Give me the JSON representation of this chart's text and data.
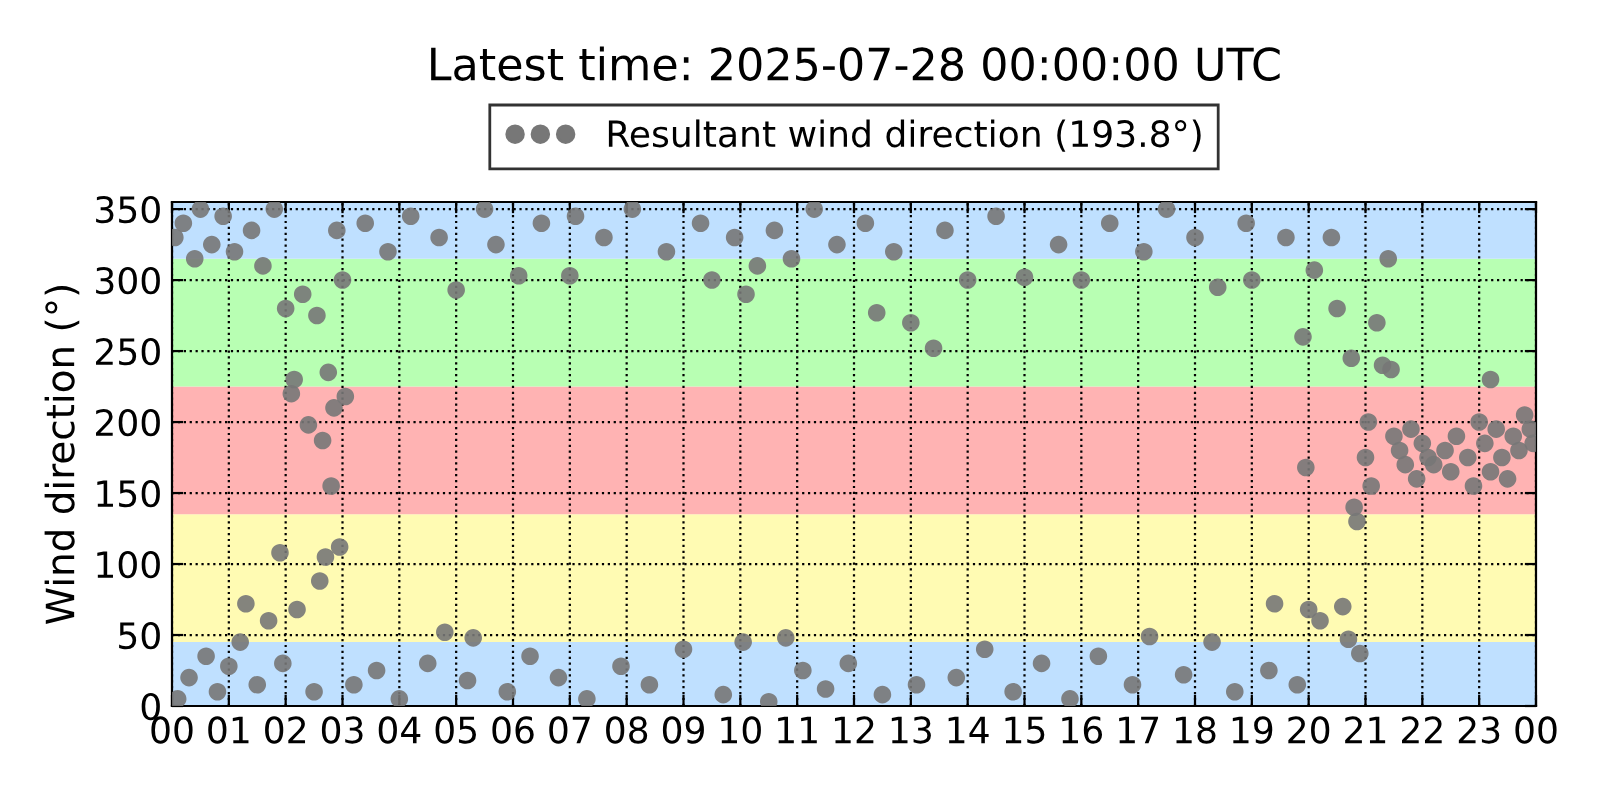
{
  "chart_data": {
    "type": "scatter",
    "title": "Latest time: 2025-07-28 00:00:00 UTC",
    "ylabel": "Wind direction (°)",
    "series": [
      {
        "name": "Resultant wind direction (193.8°)",
        "color": "#777777",
        "x": [
          0.05,
          0.1,
          0.2,
          0.3,
          0.4,
          0.5,
          0.6,
          0.7,
          0.8,
          0.9,
          1.0,
          1.1,
          1.2,
          1.3,
          1.4,
          1.5,
          1.6,
          1.7,
          1.8,
          1.9,
          1.95,
          2.0,
          2.1,
          2.15,
          2.2,
          2.3,
          2.4,
          2.5,
          2.55,
          2.6,
          2.65,
          2.7,
          2.75,
          2.8,
          2.85,
          2.9,
          2.95,
          3.05,
          3.0,
          3.2,
          3.4,
          3.6,
          3.8,
          4.0,
          4.2,
          4.5,
          4.7,
          4.8,
          5.0,
          5.2,
          5.3,
          5.5,
          5.7,
          5.9,
          6.1,
          6.3,
          6.5,
          6.8,
          7.0,
          7.1,
          7.3,
          7.6,
          7.9,
          8.1,
          8.4,
          8.7,
          9.0,
          9.3,
          9.5,
          9.7,
          9.9,
          10.05,
          10.1,
          10.3,
          10.5,
          10.6,
          10.8,
          10.9,
          11.1,
          11.3,
          11.5,
          11.7,
          11.9,
          12.2,
          12.4,
          12.5,
          12.7,
          13.0,
          13.1,
          13.4,
          13.6,
          13.8,
          14.0,
          14.3,
          14.5,
          14.8,
          15.0,
          15.3,
          15.6,
          15.8,
          16.0,
          16.3,
          16.5,
          16.9,
          17.1,
          17.2,
          17.5,
          17.8,
          18.0,
          18.3,
          18.4,
          18.7,
          18.9,
          19.0,
          19.3,
          19.4,
          19.6,
          19.8,
          19.9,
          19.95,
          20.0,
          20.1,
          20.2,
          20.4,
          20.5,
          20.6,
          20.7,
          20.75,
          20.8,
          20.85,
          20.9,
          21.0,
          21.05,
          21.1,
          21.2,
          21.3,
          21.4,
          21.45,
          21.5,
          21.6,
          21.7,
          21.8,
          21.9,
          22.0,
          22.1,
          22.2,
          22.4,
          22.5,
          22.6,
          22.8,
          22.9,
          23.0,
          23.1,
          23.2,
          23.3,
          23.4,
          23.5,
          23.6,
          23.7,
          23.8,
          23.9,
          23.95,
          23.2
        ],
        "values": [
          330,
          5,
          340,
          20,
          315,
          350,
          35,
          325,
          10,
          345,
          28,
          320,
          45,
          72,
          335,
          15,
          310,
          60,
          350,
          108,
          30,
          280,
          220,
          230,
          68,
          290,
          198,
          10,
          275,
          88,
          187,
          105,
          235,
          155,
          210,
          335,
          112,
          218,
          300,
          15,
          340,
          25,
          320,
          5,
          345,
          30,
          330,
          52,
          293,
          18,
          48,
          350,
          325,
          10,
          303,
          35,
          340,
          20,
          303,
          345,
          5,
          330,
          28,
          350,
          15,
          320,
          40,
          340,
          300,
          8,
          330,
          45,
          290,
          310,
          3,
          335,
          48,
          315,
          25,
          350,
          12,
          325,
          30,
          340,
          277,
          8,
          320,
          270,
          15,
          252,
          335,
          20,
          300,
          40,
          345,
          10,
          302,
          30,
          325,
          5,
          300,
          35,
          340,
          15,
          320,
          49,
          350,
          22,
          330,
          45,
          295,
          10,
          340,
          300,
          25,
          72,
          330,
          15,
          260,
          168,
          68,
          307,
          60,
          330,
          280,
          70,
          47,
          245,
          140,
          130,
          37,
          175,
          200,
          155,
          270,
          240,
          315,
          237,
          190,
          180,
          170,
          195,
          160,
          185,
          175,
          170,
          180,
          165,
          190,
          175,
          155,
          200,
          185,
          165,
          195,
          175,
          160,
          190,
          180,
          205,
          195,
          185,
          230
        ]
      }
    ],
    "xlim": [
      0,
      24
    ],
    "xticks": [
      {
        "value": 0,
        "label": "00"
      },
      {
        "value": 1,
        "label": "01"
      },
      {
        "value": 2,
        "label": "02"
      },
      {
        "value": 3,
        "label": "03"
      },
      {
        "value": 4,
        "label": "04"
      },
      {
        "value": 5,
        "label": "05"
      },
      {
        "value": 6,
        "label": "06"
      },
      {
        "value": 7,
        "label": "07"
      },
      {
        "value": 8,
        "label": "08"
      },
      {
        "value": 9,
        "label": "09"
      },
      {
        "value": 10,
        "label": "10"
      },
      {
        "value": 11,
        "label": "11"
      },
      {
        "value": 12,
        "label": "12"
      },
      {
        "value": 13,
        "label": "13"
      },
      {
        "value": 14,
        "label": "14"
      },
      {
        "value": 15,
        "label": "15"
      },
      {
        "value": 16,
        "label": "16"
      },
      {
        "value": 17,
        "label": "17"
      },
      {
        "value": 18,
        "label": "18"
      },
      {
        "value": 19,
        "label": "19"
      },
      {
        "value": 20,
        "label": "20"
      },
      {
        "value": 21,
        "label": "21"
      },
      {
        "value": 22,
        "label": "22"
      },
      {
        "value": 23,
        "label": "23"
      },
      {
        "value": 24,
        "label": "00"
      }
    ],
    "ylim": [
      0,
      355
    ],
    "yticks": [
      0,
      50,
      100,
      150,
      200,
      250,
      300,
      350
    ],
    "bands": [
      {
        "axis": "y",
        "from": 0,
        "to": 45,
        "color": "#bfe0ff"
      },
      {
        "axis": "y",
        "from": 45,
        "to": 135,
        "color": "#fffbb3"
      },
      {
        "axis": "y",
        "from": 135,
        "to": 225,
        "color": "#ffb3b3"
      },
      {
        "axis": "y",
        "from": 225,
        "to": 315,
        "color": "#b8ffb3"
      },
      {
        "axis": "y",
        "from": 315,
        "to": 360,
        "color": "#bfe0ff"
      }
    ],
    "grid": true,
    "legend": "top",
    "marker": "circle"
  }
}
